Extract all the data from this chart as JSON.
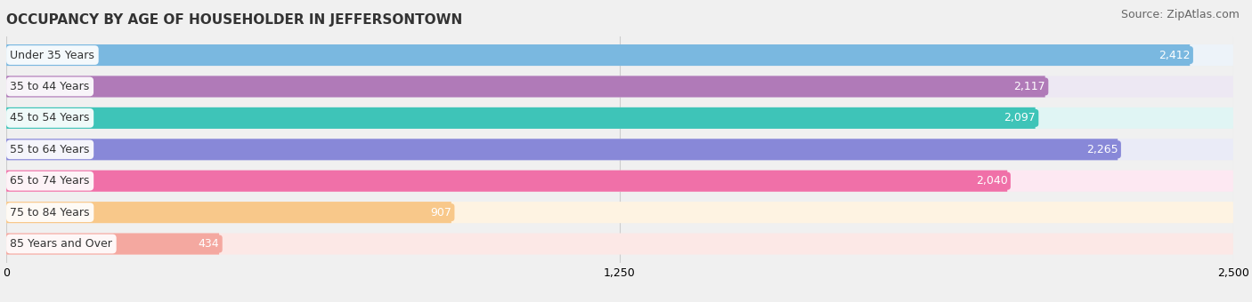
{
  "title": "OCCUPANCY BY AGE OF HOUSEHOLDER IN JEFFERSONTOWN",
  "source": "Source: ZipAtlas.com",
  "categories": [
    "Under 35 Years",
    "35 to 44 Years",
    "45 to 54 Years",
    "55 to 64 Years",
    "65 to 74 Years",
    "75 to 84 Years",
    "85 Years and Over"
  ],
  "values": [
    2412,
    2117,
    2097,
    2265,
    2040,
    907,
    434
  ],
  "bar_colors": [
    "#7ab8e0",
    "#b07ab8",
    "#3ec4b8",
    "#8888d8",
    "#f070a8",
    "#f8c88a",
    "#f4a8a0"
  ],
  "bar_bg_colors": [
    "#edf3f9",
    "#ede8f3",
    "#e0f5f4",
    "#eaebf7",
    "#fde8f2",
    "#fef3e2",
    "#fce8e6"
  ],
  "xlim": [
    0,
    2500
  ],
  "xticks": [
    0,
    1250,
    2500
  ],
  "background_color": "#f0f0f0",
  "title_fontsize": 11,
  "source_fontsize": 9,
  "label_fontsize": 9,
  "value_fontsize": 9
}
